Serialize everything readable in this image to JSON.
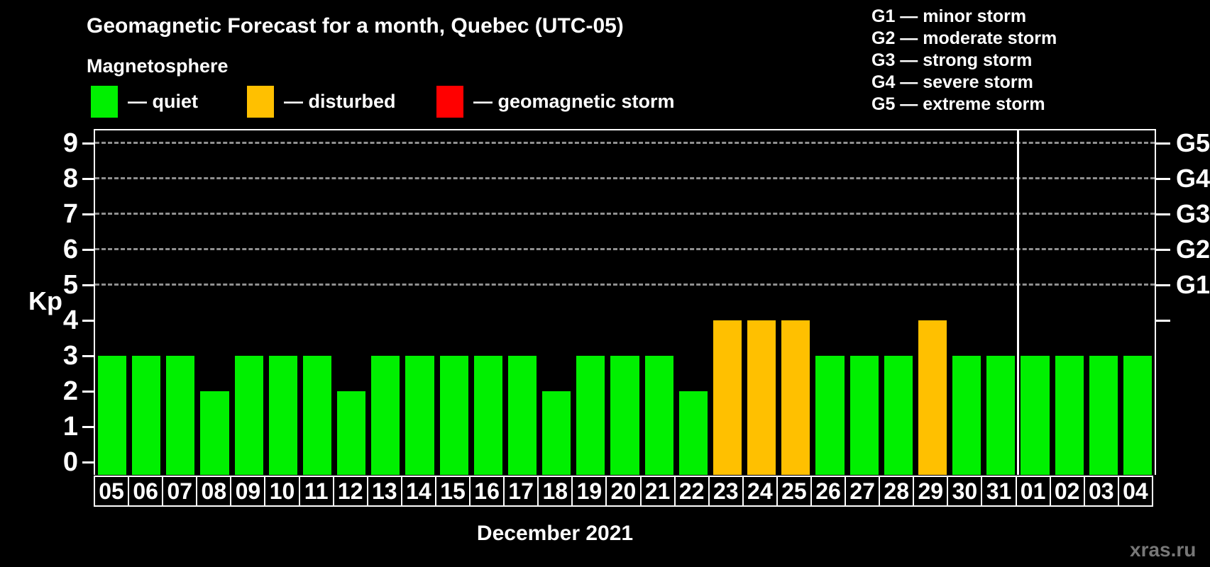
{
  "title": "Geomagnetic Forecast for a month, Quebec (UTC-05)",
  "subtitle": "Magnetosphere",
  "colors": {
    "quiet": "#00f000",
    "disturbed": "#ffc000",
    "storm": "#ff0000",
    "gridline": "#aaaaaa",
    "axis": "#ffffff",
    "watermark": "#777777"
  },
  "legend": {
    "items": [
      {
        "key": "quiet",
        "label": "— quiet"
      },
      {
        "key": "disturbed",
        "label": "— disturbed"
      },
      {
        "key": "storm",
        "label": "— geomagnetic storm"
      }
    ]
  },
  "g_scale_legend": [
    "G1 — minor storm",
    "G2 — moderate storm",
    "G3 — strong storm",
    "G4 — severe storm",
    "G5 — extreme storm"
  ],
  "axis": {
    "y_label": "Kp",
    "month_label": "December 2021"
  },
  "watermark": "xras.ru",
  "chart_data": {
    "type": "bar",
    "title": "Geomagnetic Forecast for a month, Quebec (UTC-05)",
    "xlabel": "December 2021",
    "ylabel": "Kp",
    "ylim": [
      0,
      9
    ],
    "yticks": [
      0,
      1,
      2,
      3,
      4,
      5,
      6,
      7,
      8,
      9
    ],
    "gridlines_at": [
      5,
      6,
      7,
      8,
      9
    ],
    "right_ticks": [
      4,
      5,
      6,
      7,
      8,
      9
    ],
    "right_axis_labels": [
      {
        "kp": 5,
        "label": "G1"
      },
      {
        "kp": 6,
        "label": "G2"
      },
      {
        "kp": 7,
        "label": "G3"
      },
      {
        "kp": 8,
        "label": "G4"
      },
      {
        "kp": 9,
        "label": "G5"
      }
    ],
    "categories": [
      "05",
      "06",
      "07",
      "08",
      "09",
      "10",
      "11",
      "12",
      "13",
      "14",
      "15",
      "16",
      "17",
      "18",
      "19",
      "20",
      "21",
      "22",
      "23",
      "24",
      "25",
      "26",
      "27",
      "28",
      "29",
      "30",
      "31",
      "01",
      "02",
      "03",
      "04"
    ],
    "values": [
      3,
      3,
      3,
      2,
      3,
      3,
      3,
      2,
      3,
      3,
      3,
      3,
      3,
      2,
      3,
      3,
      3,
      2,
      4,
      4,
      4,
      3,
      3,
      3,
      4,
      3,
      3,
      3,
      3,
      3,
      3
    ],
    "statuses": [
      "quiet",
      "quiet",
      "quiet",
      "quiet",
      "quiet",
      "quiet",
      "quiet",
      "quiet",
      "quiet",
      "quiet",
      "quiet",
      "quiet",
      "quiet",
      "quiet",
      "quiet",
      "quiet",
      "quiet",
      "quiet",
      "disturbed",
      "disturbed",
      "disturbed",
      "quiet",
      "quiet",
      "quiet",
      "disturbed",
      "quiet",
      "quiet",
      "quiet",
      "quiet",
      "quiet",
      "quiet"
    ],
    "month_separator_index": 27,
    "legend_position": "top-left",
    "grid": "dashed horizontal at G-levels only"
  }
}
